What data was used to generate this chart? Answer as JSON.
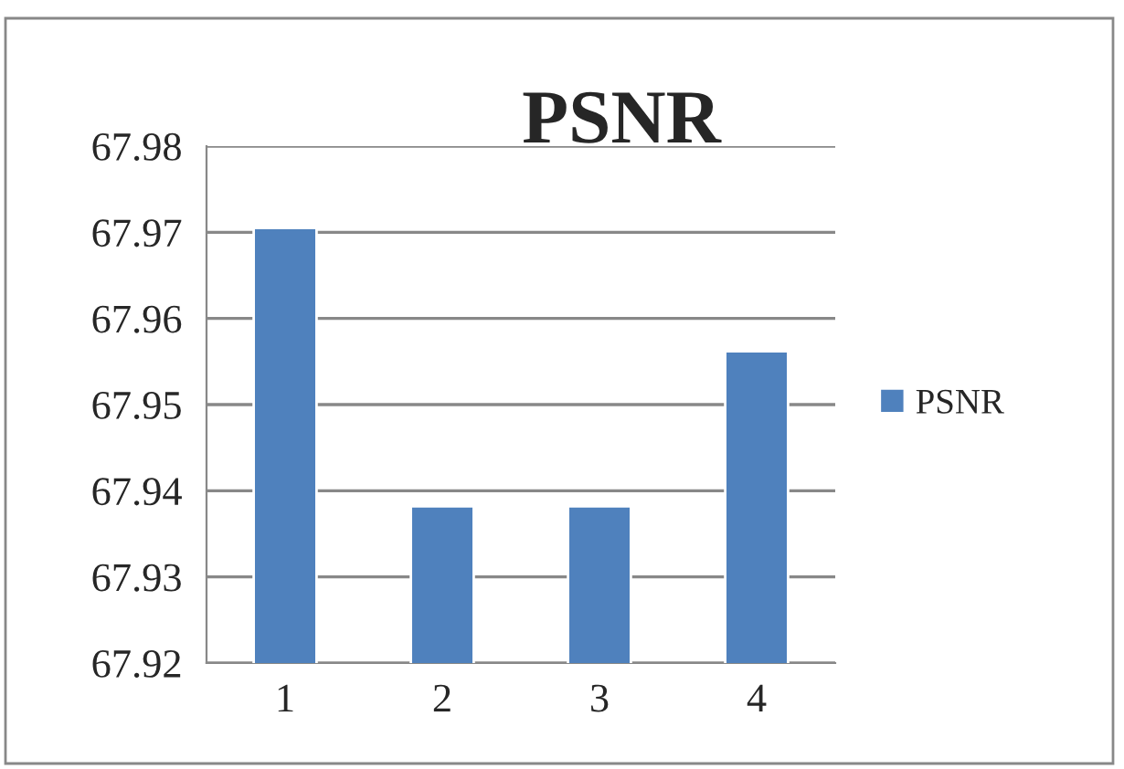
{
  "chart_data": {
    "type": "bar",
    "title": "PSNR",
    "categories": [
      "1",
      "2",
      "3",
      "4"
    ],
    "series": [
      {
        "name": "PSNR",
        "color": "#4f81bd",
        "values": [
          67.9705,
          67.9382,
          67.9382,
          67.9562
        ]
      }
    ],
    "ylim": [
      67.92,
      67.98
    ],
    "yticks": [
      67.92,
      67.93,
      67.94,
      67.95,
      67.96,
      67.97,
      67.98
    ],
    "grid": "y",
    "legend": "right"
  }
}
